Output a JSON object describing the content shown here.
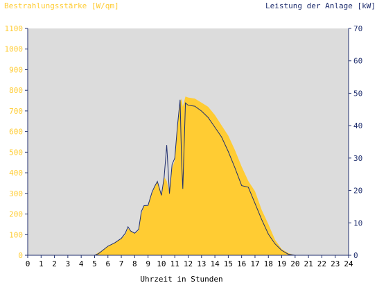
{
  "chart_data": {
    "type": "area",
    "left_axis_title": "Bestrahlungsstärke [W/qm]",
    "right_axis_title": "Leistung der Anlage [kW]",
    "xlabel": "Uhrzeit in Stunden",
    "xlim": [
      0,
      24
    ],
    "ylim": [
      0,
      1100
    ],
    "y2lim": [
      0,
      70
    ],
    "x_ticks": [
      "0",
      "1",
      "2",
      "3",
      "4",
      "5",
      "6",
      "7",
      "8",
      "9",
      "10",
      "11",
      "12",
      "13",
      "14",
      "15",
      "16",
      "17",
      "18",
      "19",
      "20",
      "21",
      "22",
      "23",
      "24"
    ],
    "y_ticks": [
      "0",
      "100",
      "200",
      "300",
      "400",
      "500",
      "600",
      "700",
      "800",
      "900",
      "1000",
      "1100"
    ],
    "y2_ticks": [
      "0",
      "10",
      "20",
      "30",
      "40",
      "50",
      "60",
      "70"
    ],
    "grid": false,
    "colors": {
      "plot_background": "#dcdcdc",
      "irradiance": "#ffcc33",
      "power": "#1f2e6e"
    },
    "series": [
      {
        "name": "Bestrahlungsstärke [W/qm]",
        "axis": "left",
        "x": [
          0,
          5.0,
          5.2,
          5.5,
          6.0,
          6.5,
          7.0,
          7.3,
          7.5,
          7.7,
          8.0,
          8.3,
          8.5,
          8.7,
          9.0,
          9.3,
          9.5,
          9.7,
          10.0,
          10.2,
          10.4,
          10.6,
          10.8,
          11.0,
          11.2,
          11.3,
          11.4,
          11.5,
          11.6,
          11.8,
          12.0,
          12.5,
          13.0,
          13.5,
          14.0,
          14.5,
          15.0,
          15.5,
          16.0,
          16.5,
          17.0,
          17.5,
          18.0,
          18.5,
          19.0,
          19.5,
          20.0,
          24
        ],
        "y": [
          0,
          0,
          10,
          20,
          45,
          60,
          80,
          100,
          130,
          120,
          105,
          120,
          200,
          240,
          240,
          300,
          330,
          360,
          300,
          380,
          360,
          300,
          420,
          460,
          620,
          680,
          740,
          760,
          720,
          770,
          765,
          760,
          740,
          720,
          680,
          630,
          580,
          510,
          430,
          360,
          310,
          220,
          150,
          75,
          30,
          10,
          0,
          0
        ]
      },
      {
        "name": "Leistung der Anlage [kW]",
        "axis": "right",
        "x": [
          0,
          5.0,
          5.3,
          5.6,
          6.0,
          6.5,
          7.0,
          7.3,
          7.5,
          7.7,
          8.0,
          8.3,
          8.5,
          8.7,
          9.0,
          9.3,
          9.5,
          9.7,
          10.0,
          10.2,
          10.4,
          10.6,
          10.8,
          11.0,
          11.2,
          11.3,
          11.4,
          11.5,
          11.6,
          11.8,
          12.0,
          12.5,
          13.0,
          13.5,
          14.0,
          14.5,
          15.0,
          15.5,
          16.0,
          16.5,
          17.0,
          17.5,
          18.0,
          18.5,
          19.0,
          19.5,
          20.0,
          24
        ],
        "y": [
          0,
          0,
          0.5,
          1.5,
          2.8,
          3.8,
          5.2,
          6.8,
          8.8,
          7.5,
          6.8,
          8.0,
          13.5,
          15.3,
          15.4,
          19.5,
          21.3,
          22.8,
          18.5,
          24.0,
          34.0,
          19.0,
          28.0,
          30.0,
          40.0,
          44.0,
          48.0,
          30.0,
          20.5,
          47.0,
          46.3,
          46.0,
          44.5,
          42.5,
          39.5,
          36.5,
          32.0,
          27.0,
          21.5,
          21.0,
          16.0,
          11.0,
          6.5,
          3.5,
          1.5,
          0.3,
          0,
          0
        ]
      }
    ]
  }
}
